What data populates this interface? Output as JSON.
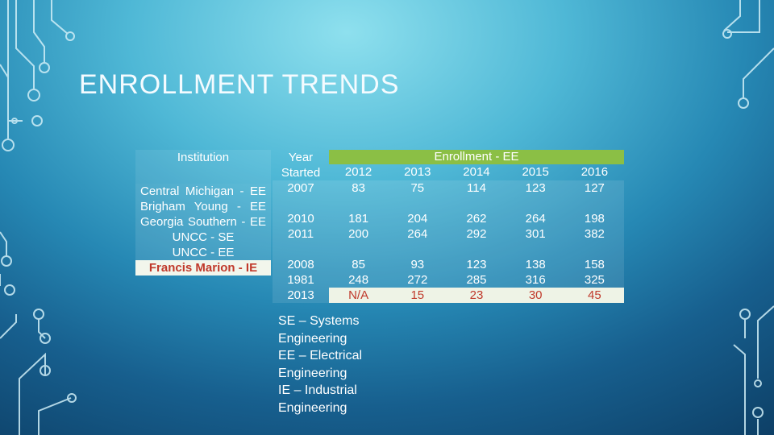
{
  "title": "ENROLLMENT TRENDS",
  "table": {
    "header_institution": "Institution",
    "header_year_started": "Year Started",
    "header_enrollment": "Enrollment - EE",
    "years": [
      "2012",
      "2013",
      "2014",
      "2015",
      "2016"
    ],
    "rows": [
      {
        "institution": "Central Michigan - EE",
        "started": "2007",
        "values": [
          "83",
          "75",
          "114",
          "123",
          "127"
        ]
      },
      {
        "institution": "Brigham Young - EE",
        "started": "2010",
        "values": [
          "181",
          "204",
          "262",
          "264",
          "198"
        ]
      },
      {
        "institution": "Georgia Southern - EE",
        "started": "2011",
        "values": [
          "200",
          "264",
          "292",
          "301",
          "382"
        ]
      },
      {
        "institution": "UNCC - SE",
        "started": "2008",
        "values": [
          "85",
          "93",
          "123",
          "138",
          "158"
        ]
      },
      {
        "institution": "UNCC - EE",
        "started": "1981",
        "values": [
          "248",
          "272",
          "285",
          "316",
          "325"
        ]
      },
      {
        "institution": "Francis Marion - IE",
        "started": "2013",
        "values": [
          "N/A",
          "15",
          "23",
          "30",
          "45"
        ]
      }
    ]
  },
  "legend": [
    "SE – Systems",
    "Engineering",
    "EE – Electrical",
    "Engineering",
    "IE – Industrial",
    "Engineering"
  ],
  "colors": {
    "accent_green": "#8bbf45",
    "highlight_red": "#c0392b"
  }
}
